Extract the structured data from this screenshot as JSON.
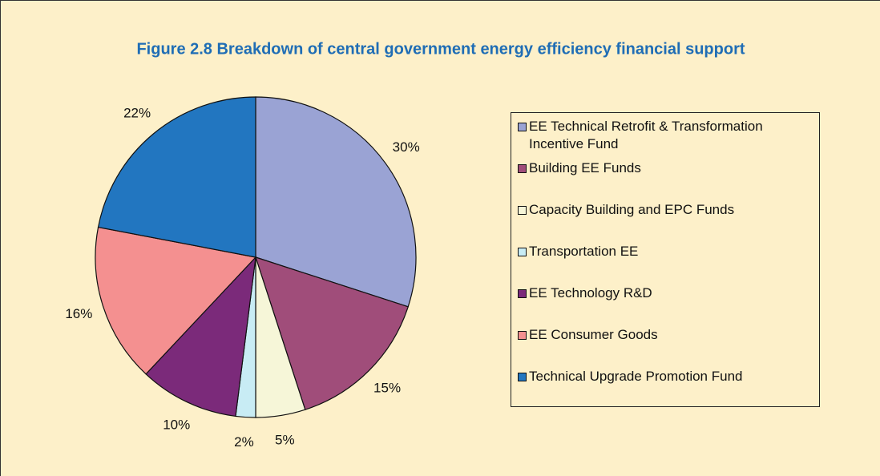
{
  "chart_data": {
    "type": "pie",
    "title": "Figure 2.8 Breakdown of central government energy efficiency financial support",
    "categories": [
      "EE Technical Retrofit & Transformation Incentive Fund",
      "Building EE Funds",
      "Capacity Building and EPC Funds",
      "Transportation EE",
      "EE Technology R&D",
      "EE Consumer Goods",
      "Technical Upgrade Promotion Fund"
    ],
    "values": [
      30,
      15,
      5,
      2,
      10,
      16,
      22
    ],
    "value_labels": [
      "30%",
      "15%",
      "5%",
      "2%",
      "10%",
      "16%",
      "22%"
    ],
    "colors": [
      "#9aa3d4",
      "#a04d7a",
      "#f6f6d8",
      "#c8ecf4",
      "#7b2a7a",
      "#f49090",
      "#2276c0"
    ]
  }
}
